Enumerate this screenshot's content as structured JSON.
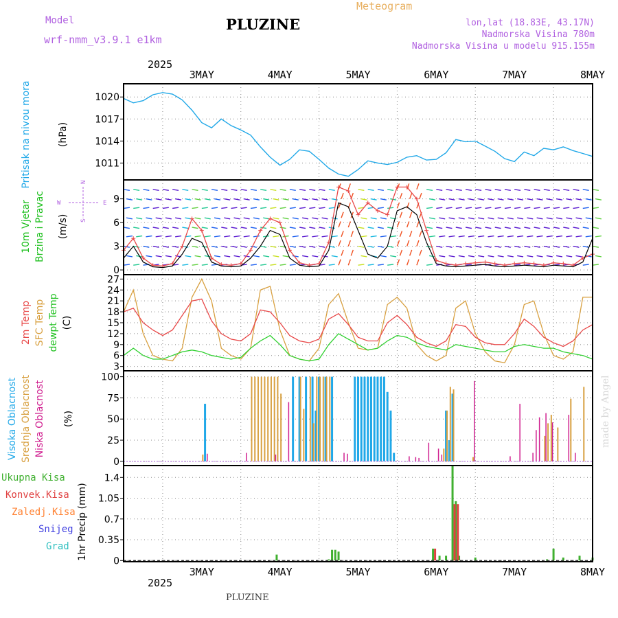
{
  "header": {
    "model_label": "Model",
    "model_name": "wrf-nmm_v3.9.1 e1km",
    "station": "PLUZINE",
    "product": "Meteogram",
    "coords": "lon,lat (18.83E, 43.17N)",
    "elevation": "Nadmorska Visina 780m",
    "model_elevation": "Nadmorska Visina u modelu 915.155m",
    "footer_station": "PLUZINE",
    "credit": "made by Angel"
  },
  "colors": {
    "pressure": "#20a8e8",
    "temp2m": "#e84848",
    "sfc_temp": "#d8a040",
    "dewpoint": "#30d030",
    "high_cloud": "#20a8e8",
    "mid_cloud": "#d8a040",
    "low_cloud": "#d02090",
    "total_precip": "#40b030",
    "conv_precip": "#e04040",
    "wind_speed": "#000000",
    "wind_gust": "#e84848"
  },
  "time_axis": {
    "year": "2025",
    "days": [
      "3MAY",
      "4MAY",
      "5MAY",
      "6MAY",
      "7MAY",
      "8MAY"
    ],
    "start_hour": -12,
    "end_hour": 132
  },
  "chart_data": [
    {
      "type": "line",
      "id": "pressure",
      "ylabel": [
        "Pritisak na nivou mora",
        "(hPa)"
      ],
      "yticks": [
        1011,
        1014,
        1017,
        1020
      ],
      "ylim": [
        1008.7,
        1021.8
      ],
      "series": [
        {
          "key": "pressure",
          "x": [
            -12,
            -9,
            -6,
            -3,
            0,
            3,
            6,
            9,
            12,
            15,
            18,
            21,
            24,
            27,
            30,
            33,
            36,
            39,
            42,
            45,
            48,
            51,
            54,
            57,
            60,
            63,
            66,
            69,
            72,
            75,
            78,
            81,
            84,
            87,
            90,
            93,
            96,
            99,
            102,
            105,
            108,
            111,
            114,
            117,
            120,
            123,
            126,
            129,
            132
          ],
          "values": [
            1019.8,
            1019.2,
            1019.5,
            1020.3,
            1020.6,
            1020.4,
            1019.6,
            1018.2,
            1016.5,
            1015.8,
            1017.0,
            1016.1,
            1015.5,
            1014.8,
            1013.2,
            1011.8,
            1010.7,
            1011.5,
            1012.8,
            1012.6,
            1011.5,
            1010.3,
            1009.5,
            1009.2,
            1010.1,
            1011.3,
            1011.0,
            1010.8,
            1011.1,
            1011.8,
            1012.0,
            1011.4,
            1011.5,
            1012.4,
            1014.2,
            1013.9,
            1014.0,
            1013.3,
            1012.6,
            1011.6,
            1011.2,
            1012.5,
            1012.0,
            1013.0,
            1012.8,
            1013.2,
            1012.7,
            1012.3,
            1011.9
          ]
        }
      ]
    },
    {
      "type": "line",
      "id": "wind",
      "ylabel": [
        "10m Vjetar",
        "Brzina i Pravac",
        "(m/s)"
      ],
      "compass": [
        "N",
        "W",
        "E",
        "S"
      ],
      "yticks": [
        0,
        3,
        6,
        9
      ],
      "ylim": [
        -0.6,
        11.4
      ],
      "series": [
        {
          "key": "wind_speed",
          "x": [
            -12,
            -9,
            -6,
            -3,
            0,
            3,
            6,
            9,
            12,
            15,
            18,
            21,
            24,
            27,
            30,
            33,
            36,
            39,
            42,
            45,
            48,
            51,
            54,
            57,
            60,
            63,
            66,
            69,
            72,
            75,
            78,
            81,
            84,
            87,
            90,
            93,
            96,
            99,
            102,
            105,
            108,
            111,
            114,
            117,
            120,
            123,
            126,
            129,
            132
          ],
          "values": [
            1.5,
            3.0,
            1.0,
            0.4,
            0.3,
            0.5,
            2.0,
            4.0,
            3.5,
            1.0,
            0.5,
            0.4,
            0.5,
            1.5,
            3.0,
            5.0,
            4.5,
            1.5,
            0.6,
            0.4,
            0.5,
            2.5,
            8.5,
            8.0,
            5.0,
            2.0,
            1.5,
            3.0,
            7.5,
            8.0,
            7.0,
            3.5,
            0.8,
            0.5,
            0.4,
            0.5,
            0.6,
            0.7,
            0.5,
            0.4,
            0.5,
            0.6,
            0.5,
            0.4,
            0.6,
            0.5,
            0.4,
            1.0,
            4.0
          ]
        },
        {
          "key": "wind_gust",
          "x": [
            -12,
            -9,
            -6,
            -3,
            0,
            3,
            6,
            9,
            12,
            15,
            18,
            21,
            24,
            27,
            30,
            33,
            36,
            39,
            42,
            45,
            48,
            51,
            54,
            57,
            60,
            63,
            66,
            69,
            72,
            75,
            78,
            81,
            84,
            87,
            90,
            93,
            96,
            99,
            102,
            105,
            108,
            111,
            114,
            117,
            120,
            123,
            126,
            129,
            132
          ],
          "values": [
            2.5,
            4.0,
            1.5,
            0.6,
            0.5,
            0.8,
            3.0,
            6.5,
            5.0,
            1.5,
            0.7,
            0.6,
            0.8,
            2.5,
            5.0,
            6.5,
            6.0,
            2.5,
            0.9,
            0.6,
            0.8,
            3.5,
            10.5,
            10.0,
            7.0,
            8.5,
            7.5,
            7.0,
            10.5,
            10.5,
            9.0,
            5.0,
            1.2,
            0.8,
            0.6,
            0.8,
            0.9,
            1.0,
            0.8,
            0.6,
            0.8,
            0.9,
            0.8,
            0.6,
            0.9,
            0.8,
            0.6,
            1.5,
            2.0
          ]
        }
      ]
    },
    {
      "type": "line",
      "id": "temperature",
      "ylabel": [
        "2m Temp",
        "SFC Temp",
        "dewpt Temp",
        "(C)"
      ],
      "yticks": [
        3,
        6,
        9,
        12,
        15,
        18,
        21,
        24,
        27
      ],
      "ylim": [
        1.8,
        28.2
      ],
      "series": [
        {
          "key": "sfc_temp",
          "x": [
            -12,
            -9,
            -6,
            -3,
            0,
            3,
            6,
            9,
            12,
            15,
            18,
            21,
            24,
            27,
            30,
            33,
            36,
            39,
            42,
            45,
            48,
            51,
            54,
            57,
            60,
            63,
            66,
            69,
            72,
            75,
            78,
            81,
            84,
            87,
            90,
            93,
            96,
            99,
            102,
            105,
            108,
            111,
            114,
            117,
            120,
            123,
            126,
            129,
            132
          ],
          "values": [
            18.0,
            24.0,
            12.0,
            6.0,
            5.0,
            4.5,
            8.0,
            22.0,
            27.0,
            21.0,
            8.0,
            6.0,
            5.0,
            8.0,
            24.0,
            25.0,
            13.0,
            6.0,
            5.0,
            4.5,
            8.0,
            20.0,
            23.0,
            15.0,
            8.0,
            7.5,
            8.0,
            20.0,
            22.0,
            19.0,
            9.0,
            6.0,
            4.5,
            6.0,
            19.0,
            21.0,
            12.0,
            7.0,
            4.5,
            4.0,
            9.0,
            20.0,
            21.0,
            12.0,
            6.0,
            5.0,
            7.0,
            22.0,
            22.0
          ]
        },
        {
          "key": "temp2m",
          "x": [
            -12,
            -9,
            -6,
            -3,
            0,
            3,
            6,
            9,
            12,
            15,
            18,
            21,
            24,
            27,
            30,
            33,
            36,
            39,
            42,
            45,
            48,
            51,
            54,
            57,
            60,
            63,
            66,
            69,
            72,
            75,
            78,
            81,
            84,
            87,
            90,
            93,
            96,
            99,
            102,
            105,
            108,
            111,
            114,
            117,
            120,
            123,
            126,
            129,
            132
          ],
          "values": [
            18.0,
            19.0,
            15.0,
            13.0,
            11.5,
            13.0,
            17.0,
            21.0,
            21.5,
            15.5,
            12.0,
            10.5,
            10.0,
            12.0,
            18.5,
            18.0,
            15.0,
            11.5,
            10.0,
            9.5,
            10.5,
            16.0,
            17.5,
            14.5,
            11.0,
            10.0,
            10.0,
            15.0,
            17.0,
            14.5,
            11.0,
            9.5,
            8.5,
            10.0,
            14.5,
            14.0,
            11.0,
            9.5,
            9.0,
            9.0,
            12.0,
            16.0,
            14.0,
            11.0,
            9.5,
            8.5,
            10.0,
            13.0,
            14.5
          ]
        },
        {
          "key": "dewpoint",
          "x": [
            -12,
            -9,
            -6,
            -3,
            0,
            3,
            6,
            9,
            12,
            15,
            18,
            21,
            24,
            27,
            30,
            33,
            36,
            39,
            42,
            45,
            48,
            51,
            54,
            57,
            60,
            63,
            66,
            69,
            72,
            75,
            78,
            81,
            84,
            87,
            90,
            93,
            96,
            99,
            102,
            105,
            108,
            111,
            114,
            117,
            120,
            123,
            126,
            129,
            132
          ],
          "values": [
            6.0,
            8.0,
            6.0,
            5.0,
            5.0,
            6.0,
            7.0,
            7.5,
            7.0,
            6.0,
            5.5,
            5.0,
            5.5,
            8.0,
            10.0,
            11.5,
            9.0,
            6.0,
            5.0,
            4.5,
            5.0,
            9.0,
            12.0,
            10.5,
            9.0,
            7.5,
            8.0,
            10.0,
            11.5,
            11.0,
            9.5,
            8.5,
            8.0,
            7.5,
            9.0,
            8.5,
            8.0,
            7.5,
            7.0,
            7.0,
            8.5,
            9.0,
            8.5,
            8.0,
            8.0,
            7.0,
            6.5,
            6.0,
            5.0
          ]
        }
      ]
    },
    {
      "type": "bar",
      "id": "clouds",
      "ylabel": [
        "Visoka Oblacnost",
        "Srednja Oblacnost",
        "Niska Oblacnost",
        "(%)"
      ],
      "yticks": [
        0,
        25,
        50,
        75,
        100
      ],
      "ylim": [
        -5,
        107
      ],
      "series": [
        {
          "key": "high_cloud",
          "x": [
            -12,
            13,
            40,
            42,
            44,
            46,
            47,
            48,
            50,
            52,
            59,
            60,
            61,
            62,
            63,
            64,
            65,
            66,
            67,
            68,
            69,
            70,
            71,
            87,
            88,
            89
          ],
          "values": [
            0.5,
            68,
            100,
            100,
            100,
            100,
            60,
            100,
            100,
            100,
            100,
            100,
            100,
            100,
            100,
            100,
            100,
            100,
            100,
            100,
            82,
            60,
            10,
            60,
            25,
            80
          ]
        },
        {
          "key": "mid_cloud",
          "x": [
            12,
            27,
            28,
            29,
            30,
            31,
            32,
            33,
            34,
            35,
            36,
            42,
            43,
            45,
            46,
            47,
            48,
            49,
            50,
            51,
            86,
            87,
            88,
            89,
            95,
            117,
            118,
            119,
            121,
            125,
            129
          ],
          "values": [
            8,
            100,
            100,
            100,
            100,
            100,
            100,
            100,
            100,
            100,
            80,
            100,
            62,
            100,
            45,
            100,
            100,
            100,
            100,
            100,
            15,
            60,
            88,
            85,
            5,
            30,
            45,
            55,
            40,
            74,
            88
          ]
        },
        {
          "key": "low_cloud",
          "x": [
            14,
            26,
            35,
            39,
            56,
            57,
            76,
            78,
            79,
            82,
            85,
            86,
            96,
            107,
            110,
            114,
            115,
            116,
            118,
            120,
            125,
            127
          ],
          "values": [
            9,
            10,
            8,
            70,
            10,
            9,
            6,
            5,
            4,
            22,
            15,
            8,
            95,
            6,
            68,
            10,
            37,
            52,
            57,
            46,
            55,
            10
          ]
        }
      ]
    },
    {
      "type": "bar",
      "id": "precip",
      "ylabel": [
        "1hr Precip (mm)"
      ],
      "legend": [
        "Ukupna Kisa",
        "Konvek.Kisa",
        "Zaledj.Kisa",
        "Snijeg",
        "Grad"
      ],
      "yticks": [
        0,
        0.35,
        0.7,
        1.05,
        1.4
      ],
      "yticklabels": [
        "0",
        "0.35",
        "0.7",
        "1.05",
        "1.4"
      ],
      "ylim": [
        -0.02,
        1.6
      ],
      "series": [
        {
          "key": "total_precip",
          "x": [
            35,
            51,
            52,
            53,
            54,
            83,
            85,
            87,
            89,
            90,
            91,
            96,
            118,
            120,
            123,
            128,
            132
          ],
          "values": [
            0.1,
            0.02,
            0.18,
            0.18,
            0.15,
            0.2,
            0.08,
            0.08,
            1.6,
            1.0,
            0.08,
            0.05,
            0.02,
            0.2,
            0.05,
            0.08,
            0.05
          ]
        },
        {
          "key": "conv_precip",
          "x": [
            83,
            89,
            90
          ],
          "values": [
            0.2,
            0.95,
            0.95
          ]
        }
      ]
    }
  ]
}
